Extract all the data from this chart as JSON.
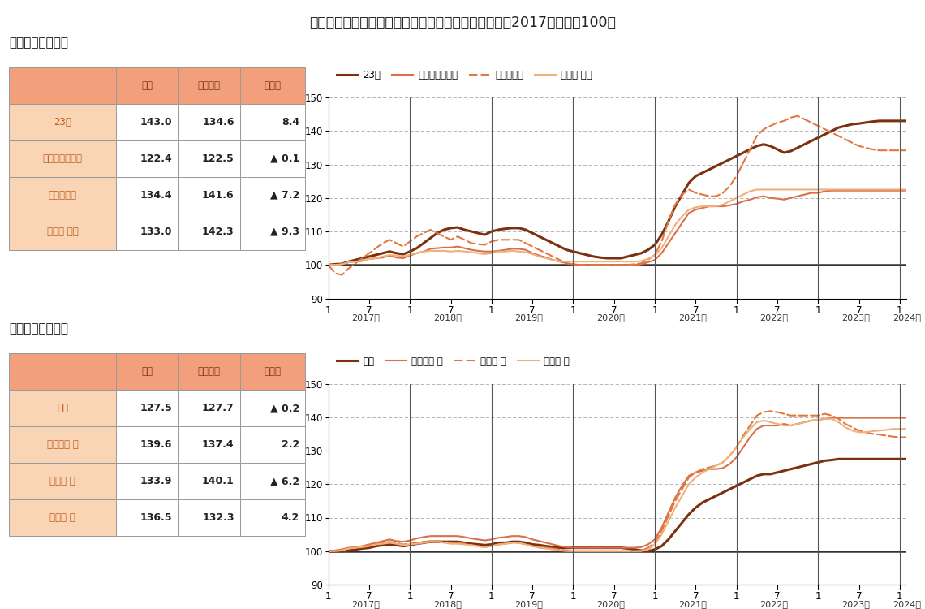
{
  "title": "＜図表２＞　首都圈８エリア　平均価格指数の推移（2017年１月＝100）",
  "section1_title": "「中心４エリア」",
  "section2_title": "「周辺４エリア」",
  "section1_title_bracket": "【中心４エリア】",
  "section2_title_bracket": "【周辺４エリア】",
  "table1_headers": [
    "",
    "当月",
    "前年同月",
    "前年差"
  ],
  "table1_rows": [
    [
      "23区",
      "143.0",
      "134.6",
      "8.4"
    ],
    [
      "横浜市・川崎市",
      "122.4",
      "122.5",
      "▲ 0.1"
    ],
    [
      "さいたま市",
      "134.4",
      "141.6",
      "▲ 7.2"
    ],
    [
      "千葉県 西部",
      "133.0",
      "142.3",
      "▲ 9.3"
    ]
  ],
  "table2_headers": [
    "",
    "当月",
    "前年同月",
    "前年差"
  ],
  "table2_rows": [
    [
      "都下",
      "127.5",
      "127.7",
      "▲ 0.2"
    ],
    [
      "神奈川県 他",
      "139.6",
      "137.4",
      "2.2"
    ],
    [
      "埼玉県 他",
      "133.9",
      "140.1",
      "▲ 6.2"
    ],
    [
      "千葉県 他",
      "136.5",
      "132.3",
      "4.2"
    ]
  ],
  "header_bg": "#F2A07B",
  "cell_bg_left": "#FAD5B5",
  "cell_bg_right": "#FFFFFF",
  "header_text_color": "#7A4010",
  "cell_left_text_color": "#C06020",
  "ylim": [
    90,
    150
  ],
  "yticks": [
    90,
    100,
    110,
    120,
    130,
    140,
    150
  ],
  "chart1_legend": [
    "23区",
    "横浜市・川崎市",
    "さいたま市",
    "千葉県 西部"
  ],
  "chart2_legend": [
    "都下",
    "神奈川県 他",
    "埼玉県 他",
    "千葉県 他"
  ],
  "year_names": [
    "2017年",
    "2018年",
    "2019年",
    "2020年",
    "2021年",
    "2022年",
    "2023年",
    "2024年"
  ],
  "c23": "#7B3010",
  "cyoko": "#D9704A",
  "csait": "#E07840",
  "cchiba_w": "#F0B07A",
  "ctoka": "#7B3010",
  "ckanagawa": "#D9704A",
  "csait2": "#E07840",
  "cchiba2": "#F0B07A"
}
